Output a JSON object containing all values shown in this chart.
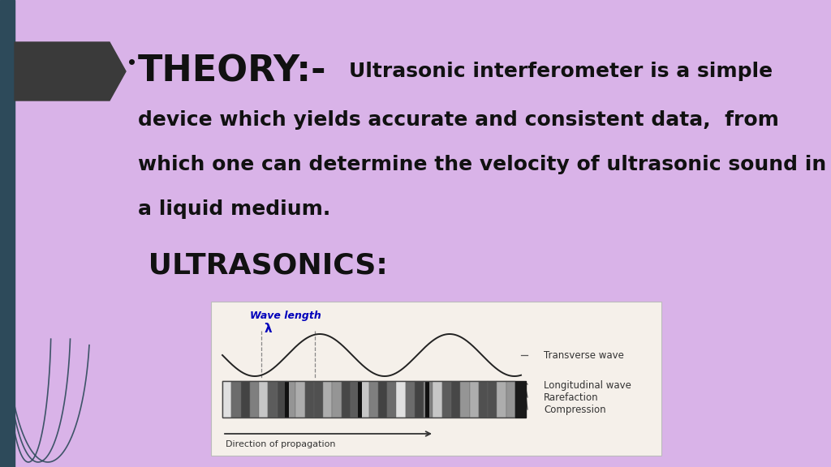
{
  "bg_color": "#d9b3e8",
  "title_text": "THEORY:-",
  "title_color": "#111111",
  "heading2_text": " ULTRASONICS:",
  "heading2_color": "#111111",
  "arrow_color": "#2d4a5a",
  "arrow_bg": "#3a3a3a",
  "left_bar_color": "#2d4a5a",
  "diagram_bg": "#f5f0ea",
  "wave_label": "Wave length",
  "lambda_label": "λ",
  "transverse_label": "Transverse wave",
  "longitudinal_label": "Longitudinal wave",
  "rarefaction_label": "Rarefaction",
  "compression_label": "Compression",
  "direction_label": "Direction of propagation",
  "body_lines": [
    "device which yields accurate and consistent data,  from",
    "which one can determine the velocity of ultrasonic sound in",
    "a liquid medium."
  ],
  "first_line": "Ultrasonic interferometer is a simple"
}
